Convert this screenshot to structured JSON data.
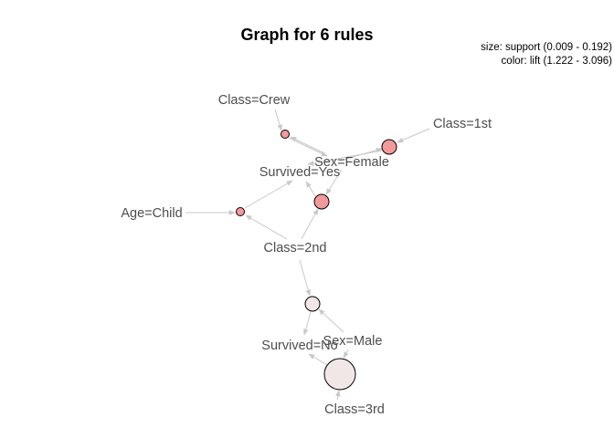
{
  "title": "Graph for 6 rules",
  "legend": {
    "size_text": "size: support (0.009 - 0.192)",
    "color_text": "color: lift (1.222 - 3.096)"
  },
  "colors": {
    "edge": "#c8c8c8",
    "label": "#4d4d4d",
    "high_lift": "#f4999b",
    "low_lift": "#f2e7e7",
    "node_border": "#000000"
  },
  "items": [
    {
      "id": "crew",
      "label": "Class=Crew"
    },
    {
      "id": "first",
      "label": "Class=1st"
    },
    {
      "id": "female",
      "label": "Sex=Female"
    },
    {
      "id": "survyes",
      "label": "Survived=Yes"
    },
    {
      "id": "child",
      "label": "Age=Child"
    },
    {
      "id": "second",
      "label": "Class=2nd"
    },
    {
      "id": "male",
      "label": "Sex=Male"
    },
    {
      "id": "survno",
      "label": "Survived=No"
    },
    {
      "id": "third",
      "label": "Class=3rd"
    }
  ],
  "rules": [
    {
      "id": "r1",
      "lift_level": "high",
      "support_level": "small",
      "lhs": [
        "crew",
        "female"
      ],
      "rhs": [
        "survyes"
      ]
    },
    {
      "id": "r2",
      "lift_level": "high",
      "support_level": "medium",
      "lhs": [
        "first",
        "female"
      ],
      "rhs": [
        "survyes"
      ]
    },
    {
      "id": "r3",
      "lift_level": "high",
      "support_level": "medium",
      "lhs": [
        "female",
        "second"
      ],
      "rhs": [
        "survyes"
      ]
    },
    {
      "id": "r4",
      "lift_level": "high",
      "support_level": "small",
      "lhs": [
        "child",
        "second"
      ],
      "rhs": [
        "survyes"
      ]
    },
    {
      "id": "r5",
      "lift_level": "low",
      "support_level": "medium",
      "lhs": [
        "second",
        "male"
      ],
      "rhs": [
        "survno"
      ]
    },
    {
      "id": "r6",
      "lift_level": "low",
      "support_level": "large",
      "lhs": [
        "male",
        "third"
      ],
      "rhs": [
        "survno"
      ]
    }
  ]
}
